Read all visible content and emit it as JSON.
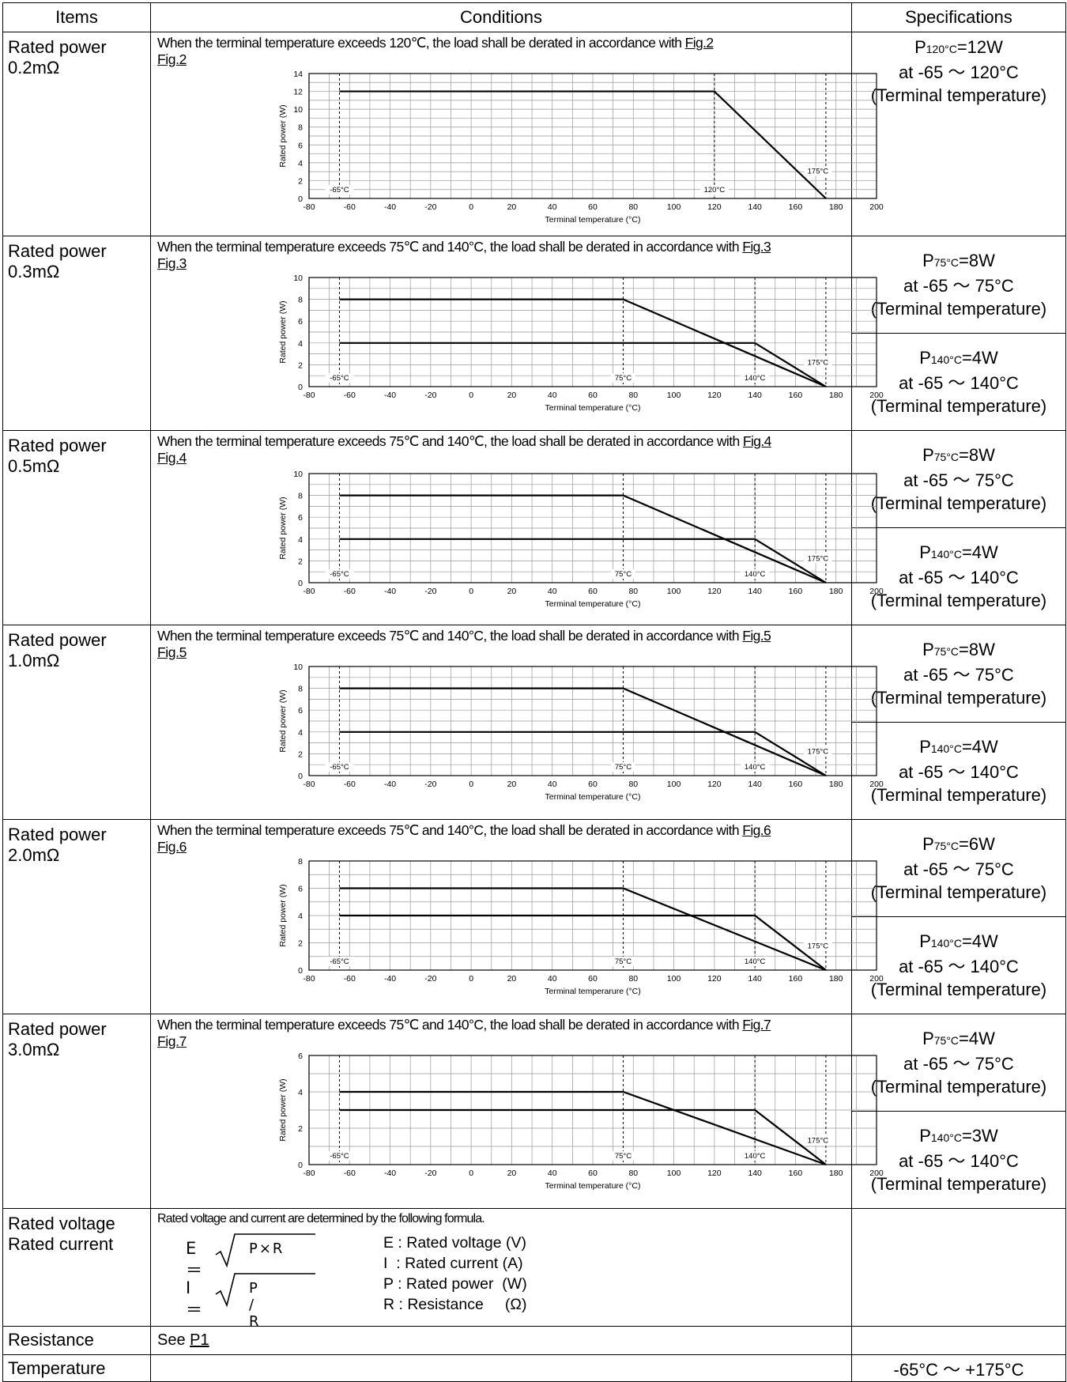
{
  "header": {
    "items": "Items",
    "conditions": "Conditions",
    "specifications": "Specifications"
  },
  "rows": [
    {
      "item": [
        "Rated power",
        "0.2mΩ"
      ],
      "condition_text": "When the terminal temperature exceeds 120℃, the load shall be derated in accordance with ",
      "fig": "Fig.2",
      "specs": [
        {
          "p_label": "P",
          "p_sub": "120°C",
          "p_value": "=12W",
          "range": "at -65 ～ 120°C",
          "note": "(Terminal temperature)"
        }
      ]
    },
    {
      "item": [
        "Rated power",
        "0.3mΩ"
      ],
      "condition_text": "When the terminal temperature exceeds 75℃ and 140°C, the load shall be derated in accordance with ",
      "fig": "Fig.3",
      "specs": [
        {
          "p_label": "P",
          "p_sub": "75°C",
          "p_value": "=8W",
          "range": "at -65 ～ 75°C",
          "note": "(Terminal temperature)"
        },
        {
          "p_label": "P",
          "p_sub": "140°C",
          "p_value": "=4W",
          "range": "at -65 ～ 140°C",
          "note": "(Terminal temperature)"
        }
      ]
    },
    {
      "item": [
        "Rated power",
        "0.5mΩ"
      ],
      "condition_text": "When the terminal temperature exceeds 75℃ and 140℃, the load shall be derated in accordance with ",
      "fig": "Fig.4",
      "specs": [
        {
          "p_label": "P",
          "p_sub": "75°C",
          "p_value": "=8W",
          "range": "at -65 ～ 75°C",
          "note": "(Terminal temperature)"
        },
        {
          "p_label": "P",
          "p_sub": "140°C",
          "p_value": "=4W",
          "range": "at -65 ～ 140°C",
          "note": "(Terminal temperature)"
        }
      ]
    },
    {
      "item": [
        "Rated power",
        "1.0mΩ"
      ],
      "condition_text": "When the terminal temperature exceeds 75℃ and 140°C, the load shall be derated in accordance with ",
      "fig": "Fig.5",
      "specs": [
        {
          "p_label": "P",
          "p_sub": "75°C",
          "p_value": "=8W",
          "range": "at -65 ～ 75°C",
          "note": "(Terminal temperature)"
        },
        {
          "p_label": "P",
          "p_sub": "140°C",
          "p_value": "=4W",
          "range": "at -65 ～ 140°C",
          "note": "(Terminal temperature)"
        }
      ]
    },
    {
      "item": [
        "Rated power",
        "2.0mΩ"
      ],
      "condition_text": "When the terminal temperature exceeds 75℃ and 140°C, the load shall be derated in accordance with ",
      "fig": "Fig.6",
      "specs": [
        {
          "p_label": "P",
          "p_sub": "75°C",
          "p_value": "=6W",
          "range": "at -65 ～ 75°C",
          "note": "(Terminal temperature)"
        },
        {
          "p_label": "P",
          "p_sub": "140°C",
          "p_value": "=4W",
          "range": "at -65 ～ 140°C",
          "note": "(Terminal temperature)"
        }
      ]
    },
    {
      "item": [
        "Rated power",
        "3.0mΩ"
      ],
      "condition_text": "When the terminal temperature exceeds 75℃ and 140°C, the load shall be derated in accordance with ",
      "fig": "Fig.7",
      "specs": [
        {
          "p_label": "P",
          "p_sub": "75°C",
          "p_value": "=4W",
          "range": "at -65 ～ 75°C",
          "note": "(Terminal temperature)"
        },
        {
          "p_label": "P",
          "p_sub": "140°C",
          "p_value": "=3W",
          "range": "at -65 ～ 140°C",
          "note": "(Terminal temperature)"
        }
      ]
    }
  ],
  "voltage_row": {
    "item": [
      "Rated voltage",
      "Rated current"
    ],
    "intro": "Rated voltage and current are determined by the following formula.",
    "formula_e_lhs": "E＝",
    "formula_e_rad": "P×R",
    "formula_i_lhs": "I ＝",
    "formula_i_rad": "P / R",
    "legend": [
      "E : Rated voltage (V)",
      "I  : Rated current (A)",
      "P : Rated power  (W)",
      "R : Resistance     (Ω)"
    ]
  },
  "resistance_row": {
    "item": "Resistance",
    "text": "See ",
    "link": "P1"
  },
  "temperature_row": {
    "item": "Temperature",
    "spec": "-65°C ～ +175°C"
  },
  "chart_data": [
    {
      "type": "line",
      "figure": "Fig.2",
      "xlabel": "Terminal temperature (°C)",
      "ylabel": "Rated power  (W)",
      "xlim": [
        -80,
        200
      ],
      "ylim": [
        0,
        14
      ],
      "x_ticks": [
        -80,
        -60,
        -40,
        -20,
        0,
        20,
        40,
        60,
        80,
        100,
        120,
        140,
        160,
        180,
        200
      ],
      "y_ticks": [
        0,
        2,
        4,
        6,
        8,
        10,
        12,
        14
      ],
      "grid": true,
      "series": [
        {
          "x": [
            -65,
            120,
            175
          ],
          "y": [
            12,
            12,
            0
          ]
        }
      ],
      "markers": [
        {
          "x": -65,
          "label": "-65°C"
        },
        {
          "x": 120,
          "label": "120°C"
        },
        {
          "x": 175,
          "label": "175°C"
        }
      ]
    },
    {
      "type": "line",
      "figure": "Fig.3",
      "xlabel": "Terminal temperature (°C)",
      "ylabel": "Rated power  (W)",
      "xlim": [
        -80,
        200
      ],
      "ylim": [
        0,
        10
      ],
      "x_ticks": [
        -80,
        -60,
        -40,
        -20,
        0,
        20,
        40,
        60,
        80,
        100,
        120,
        140,
        160,
        180,
        200
      ],
      "y_ticks": [
        0,
        2,
        4,
        6,
        8,
        10
      ],
      "grid": true,
      "series": [
        {
          "x": [
            -65,
            75,
            175
          ],
          "y": [
            8,
            8,
            0
          ]
        },
        {
          "x": [
            -65,
            140,
            175
          ],
          "y": [
            4,
            4,
            0
          ]
        }
      ],
      "markers": [
        {
          "x": -65,
          "label": "-65°C"
        },
        {
          "x": 75,
          "label": "75°C"
        },
        {
          "x": 140,
          "label": "140°C"
        },
        {
          "x": 175,
          "label": "175°C"
        }
      ]
    },
    {
      "type": "line",
      "figure": "Fig.4",
      "xlabel": "Terminal temperature (°C)",
      "ylabel": "Rated power  (W)",
      "xlim": [
        -80,
        200
      ],
      "ylim": [
        0,
        10
      ],
      "x_ticks": [
        -80,
        -60,
        -40,
        -20,
        0,
        20,
        40,
        60,
        80,
        100,
        120,
        140,
        160,
        180,
        200
      ],
      "y_ticks": [
        0,
        2,
        4,
        6,
        8,
        10
      ],
      "grid": true,
      "series": [
        {
          "x": [
            -65,
            75,
            175
          ],
          "y": [
            8,
            8,
            0
          ]
        },
        {
          "x": [
            -65,
            140,
            175
          ],
          "y": [
            4,
            4,
            0
          ]
        }
      ],
      "markers": [
        {
          "x": -65,
          "label": "-65°C"
        },
        {
          "x": 75,
          "label": "75°C"
        },
        {
          "x": 140,
          "label": "140°C"
        },
        {
          "x": 175,
          "label": "175°C"
        }
      ]
    },
    {
      "type": "line",
      "figure": "Fig.5",
      "xlabel": "Terminal temperature (°C)",
      "ylabel": "Rated power  (W)",
      "xlim": [
        -80,
        200
      ],
      "ylim": [
        0,
        10
      ],
      "x_ticks": [
        -80,
        -60,
        -40,
        -20,
        0,
        20,
        40,
        60,
        80,
        100,
        120,
        140,
        160,
        180,
        200
      ],
      "y_ticks": [
        0,
        2,
        4,
        6,
        8,
        10
      ],
      "grid": true,
      "series": [
        {
          "x": [
            -65,
            75,
            175
          ],
          "y": [
            8,
            8,
            0
          ]
        },
        {
          "x": [
            -65,
            140,
            175
          ],
          "y": [
            4,
            4,
            0
          ]
        }
      ],
      "markers": [
        {
          "x": -65,
          "label": "-65°C"
        },
        {
          "x": 75,
          "label": "75°C"
        },
        {
          "x": 140,
          "label": "140°C"
        },
        {
          "x": 175,
          "label": "175°C"
        }
      ]
    },
    {
      "type": "line",
      "figure": "Fig.6",
      "xlabel": "Terminal temperarure (°C)",
      "ylabel": "Rated power  (W)",
      "xlim": [
        -80,
        200
      ],
      "ylim": [
        0,
        8
      ],
      "x_ticks": [
        -80,
        -60,
        -40,
        -20,
        0,
        20,
        40,
        60,
        80,
        100,
        120,
        140,
        160,
        180,
        200
      ],
      "y_ticks": [
        0,
        2,
        4,
        6,
        8
      ],
      "grid": true,
      "series": [
        {
          "x": [
            -65,
            75,
            175
          ],
          "y": [
            6,
            6,
            0
          ]
        },
        {
          "x": [
            -65,
            140,
            175
          ],
          "y": [
            4,
            4,
            0
          ]
        }
      ],
      "markers": [
        {
          "x": -65,
          "label": "-65°C"
        },
        {
          "x": 75,
          "label": "75°C"
        },
        {
          "x": 140,
          "label": "140°C"
        },
        {
          "x": 175,
          "label": "175°C"
        }
      ]
    },
    {
      "type": "line",
      "figure": "Fig.7",
      "xlabel": "Terminal temperature (°C)",
      "ylabel": "Rated power  (W)",
      "xlim": [
        -80,
        200
      ],
      "ylim": [
        0,
        6
      ],
      "x_ticks": [
        -80,
        -60,
        -40,
        -20,
        0,
        20,
        40,
        60,
        80,
        100,
        120,
        140,
        160,
        180,
        200
      ],
      "y_ticks": [
        0,
        2,
        4,
        6
      ],
      "grid": true,
      "series": [
        {
          "x": [
            -65,
            75,
            175
          ],
          "y": [
            4,
            4,
            0
          ]
        },
        {
          "x": [
            -65,
            140,
            175
          ],
          "y": [
            3,
            3,
            0
          ]
        }
      ],
      "markers": [
        {
          "x": -65,
          "label": "-65°C"
        },
        {
          "x": 75,
          "label": "75°C"
        },
        {
          "x": 140,
          "label": "140°C"
        },
        {
          "x": 175,
          "label": "175°C"
        }
      ]
    }
  ]
}
